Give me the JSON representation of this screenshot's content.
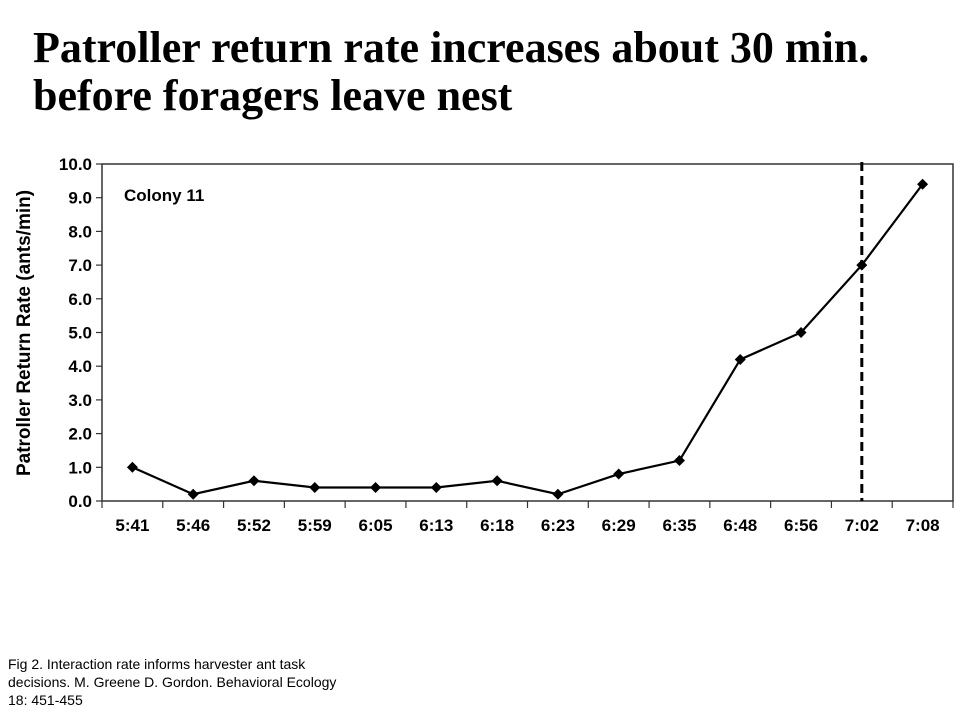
{
  "slide": {
    "title_lines": [
      "Patroller return rate increases about 30 min.",
      "before foragers leave nest"
    ],
    "caption_lines": [
      " Fig 2.  Interaction rate informs harvester ant task",
      "decisions. M. Greene  D. Gordon.  Behavioral Ecology",
      "18: 451-455"
    ]
  },
  "chart_data": {
    "type": "line",
    "title": "",
    "annotation": "Colony 11",
    "xlabel": "",
    "ylabel": "Patroller Return Rate (ants/min)",
    "categories": [
      "5:41",
      "5:46",
      "5:52",
      "5:59",
      "6:05",
      "6:13",
      "6:18",
      "6:23",
      "6:29",
      "6:35",
      "6:48",
      "6:56",
      "7:02",
      "7:08"
    ],
    "series": [
      {
        "values": [
          1.0,
          0.2,
          0.6,
          0.4,
          0.4,
          0.4,
          0.6,
          0.2,
          0.8,
          1.2,
          4.2,
          5.0,
          7.0,
          9.4
        ]
      }
    ],
    "ylim": [
      0,
      10
    ],
    "yticks": [
      "0.0",
      "1.0",
      "2.0",
      "3.0",
      "4.0",
      "5.0",
      "6.0",
      "7.0",
      "8.0",
      "9.0",
      "10.0"
    ],
    "grid": false,
    "reference_line": {
      "style": "dashed",
      "x": "7:02"
    },
    "colors": {
      "line": "#000000",
      "marker": "#000000"
    }
  }
}
